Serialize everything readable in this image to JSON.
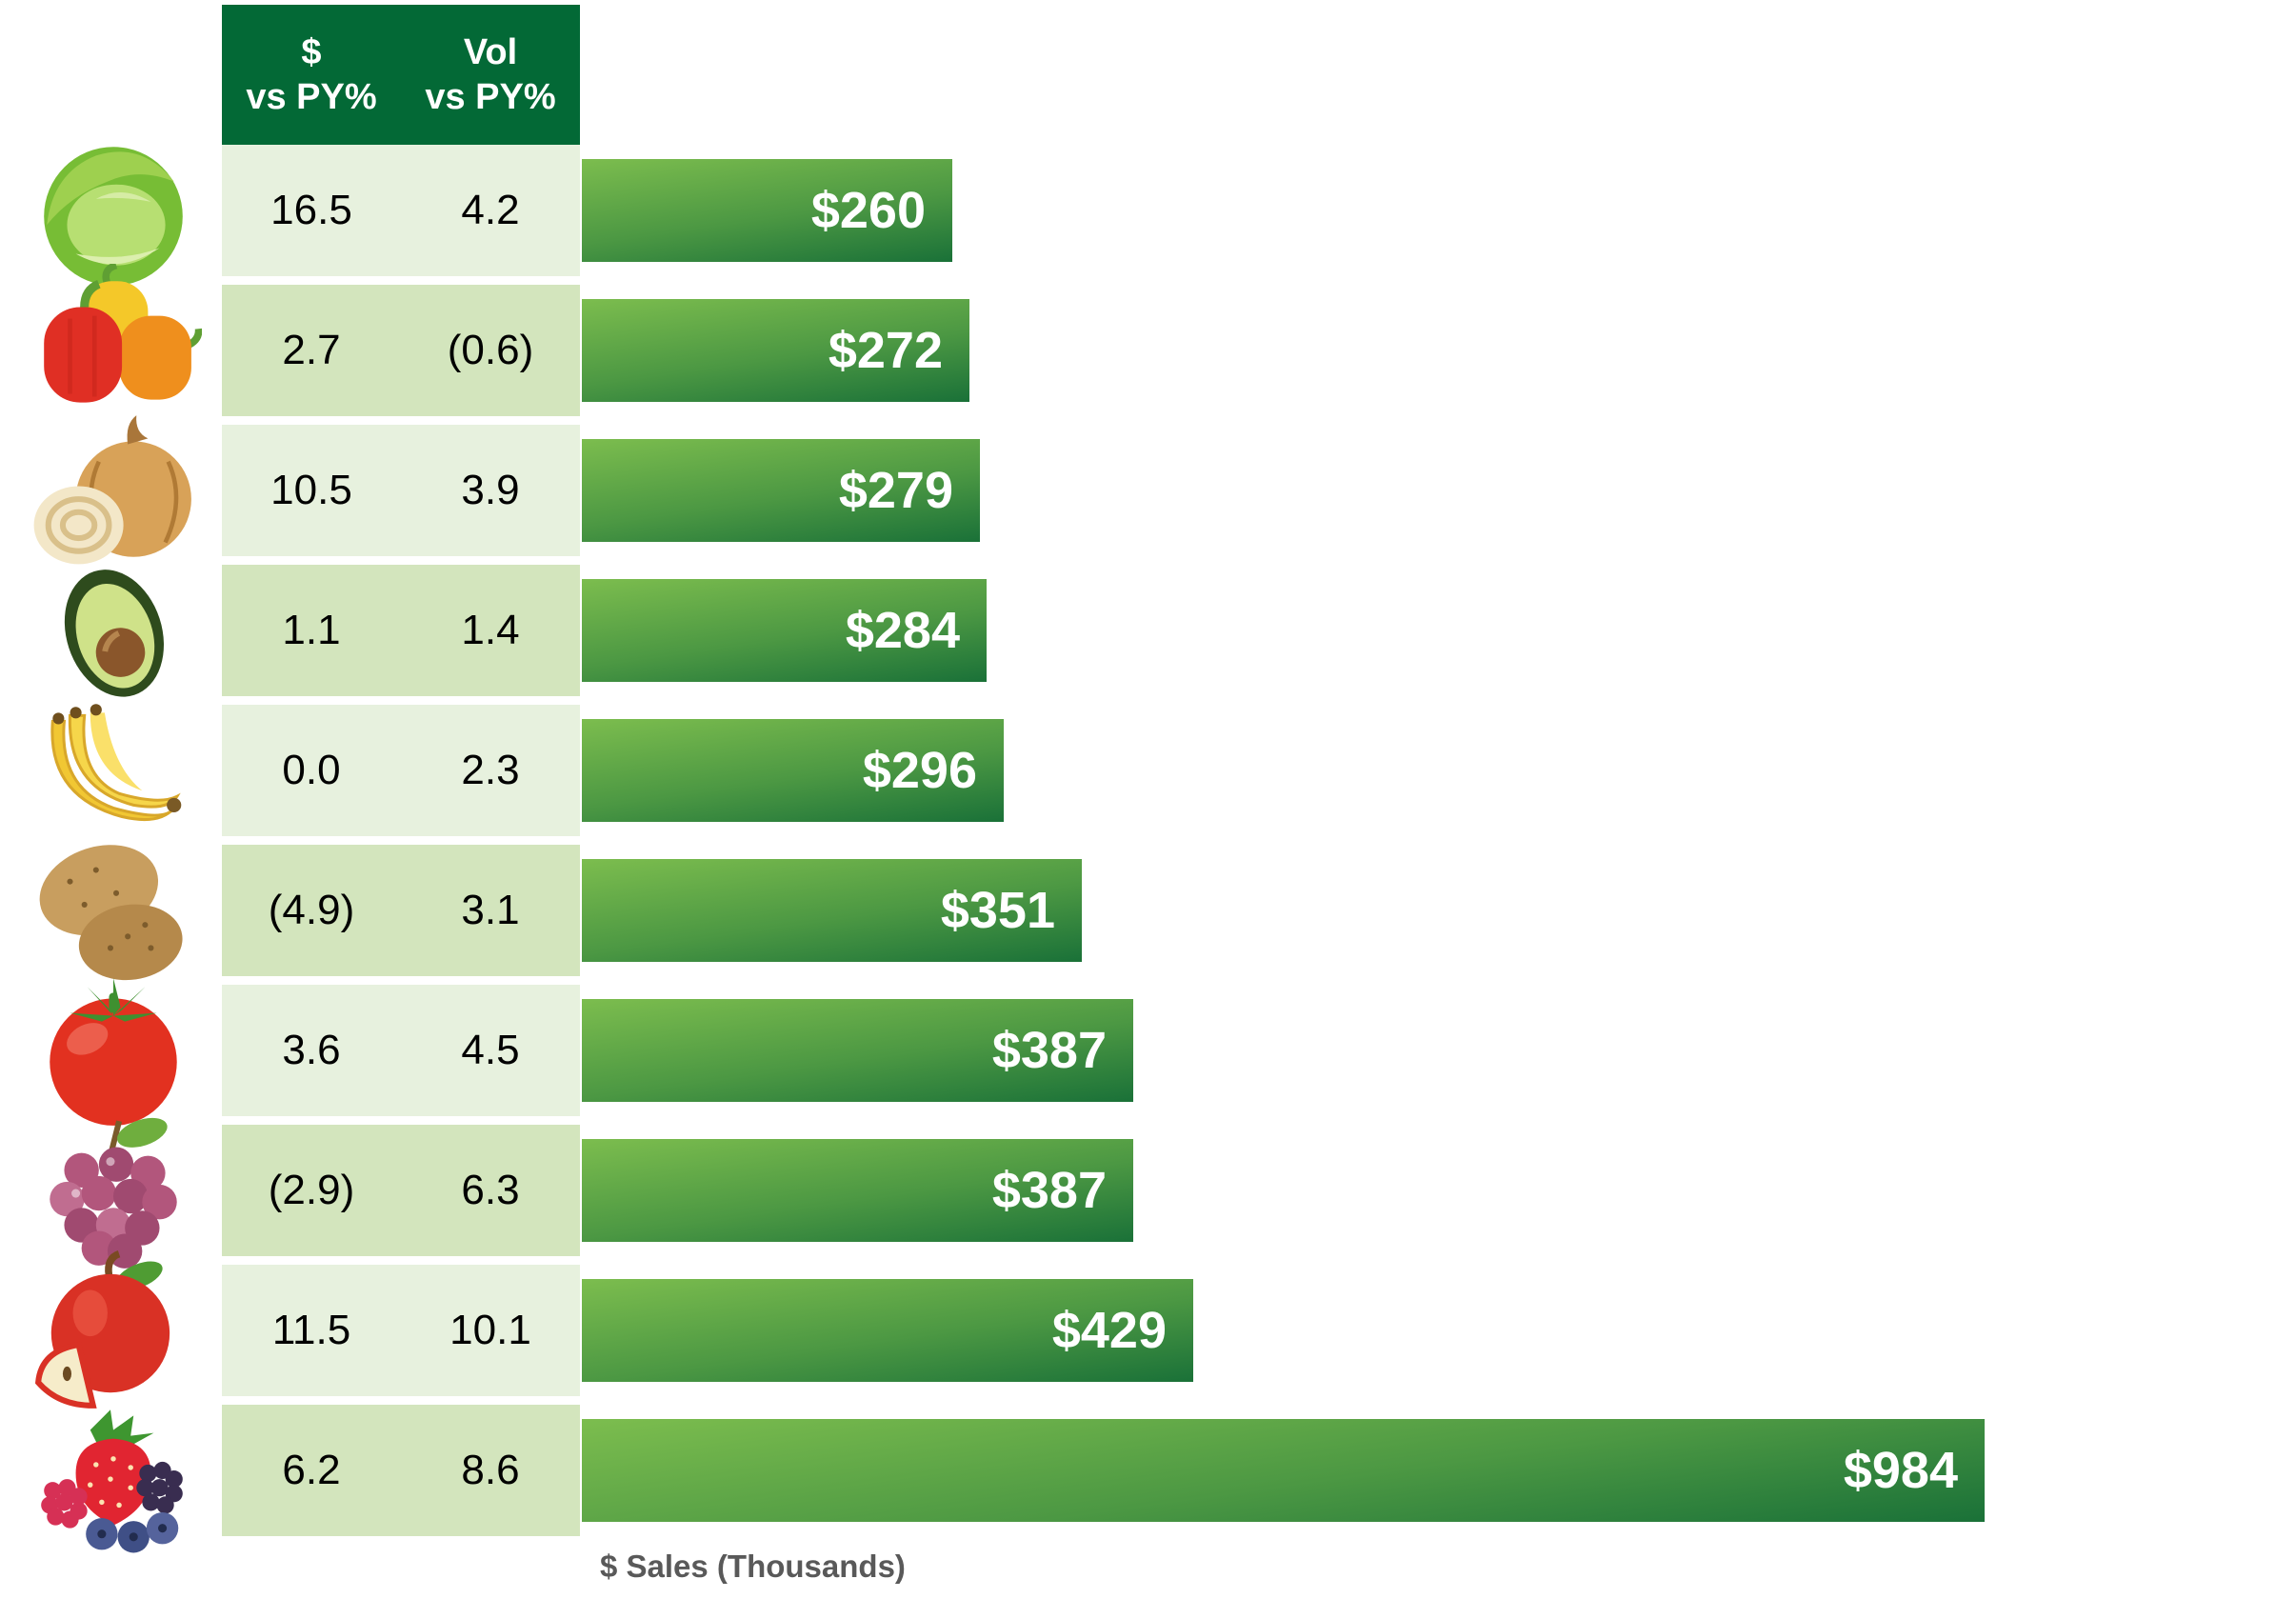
{
  "table": {
    "header": {
      "col1_line1": "$",
      "col1_line2": "vs PY%",
      "col2_line1": "Vol",
      "col2_line2": "vs PY%"
    },
    "rows": [
      {
        "item": "lettuce",
        "dollar_vs_py": "16.5",
        "vol_vs_py": "4.2",
        "sales_label": "$260"
      },
      {
        "item": "bell-peppers",
        "dollar_vs_py": "2.7",
        "vol_vs_py": "(0.6)",
        "sales_label": "$272"
      },
      {
        "item": "onion",
        "dollar_vs_py": "10.5",
        "vol_vs_py": "3.9",
        "sales_label": "$279"
      },
      {
        "item": "avocado",
        "dollar_vs_py": "1.1",
        "vol_vs_py": "1.4",
        "sales_label": "$284"
      },
      {
        "item": "bananas",
        "dollar_vs_py": "0.0",
        "vol_vs_py": "2.3",
        "sales_label": "$296"
      },
      {
        "item": "potatoes",
        "dollar_vs_py": "(4.9)",
        "vol_vs_py": "3.1",
        "sales_label": "$351"
      },
      {
        "item": "tomato",
        "dollar_vs_py": "3.6",
        "vol_vs_py": "4.5",
        "sales_label": "$387"
      },
      {
        "item": "grapes",
        "dollar_vs_py": "(2.9)",
        "vol_vs_py": "6.3",
        "sales_label": "$387"
      },
      {
        "item": "apple",
        "dollar_vs_py": "11.5",
        "vol_vs_py": "10.1",
        "sales_label": "$429"
      },
      {
        "item": "berries",
        "dollar_vs_py": "6.2",
        "vol_vs_py": "8.6",
        "sales_label": "$984"
      }
    ]
  },
  "axis": {
    "xlabel": "$ Sales (Thousands)"
  },
  "colors": {
    "header_bg": "#036936",
    "row_light": "#e7f1de",
    "row_dark": "#d3e5bd",
    "bar_gradient_start": "#7cbd4e",
    "bar_gradient_end": "#1a7138",
    "bar_label": "#ffffff",
    "axis_label": "#595959",
    "table_text": "#000000"
  },
  "chart_data": {
    "type": "bar",
    "orientation": "horizontal",
    "categories": [
      "lettuce",
      "bell-peppers",
      "onion",
      "avocado",
      "bananas",
      "potatoes",
      "tomato",
      "grapes",
      "apple",
      "berries"
    ],
    "series": [
      {
        "name": "$ Sales (Thousands)",
        "values": [
          260,
          272,
          279,
          284,
          296,
          351,
          387,
          387,
          429,
          984
        ]
      },
      {
        "name": "$ vs PY%",
        "values": [
          16.5,
          2.7,
          10.5,
          1.1,
          0.0,
          -4.9,
          3.6,
          -2.9,
          11.5,
          6.2
        ]
      },
      {
        "name": "Vol vs PY%",
        "values": [
          4.2,
          -0.6,
          3.9,
          1.4,
          2.3,
          3.1,
          4.5,
          6.3,
          10.1,
          8.6
        ]
      }
    ],
    "value_labels": [
      "$260",
      "$272",
      "$279",
      "$284",
      "$296",
      "$351",
      "$387",
      "$387",
      "$429",
      "$984"
    ],
    "negative_format": "parentheses",
    "xlabel": "$ Sales (Thousands)",
    "grid": false,
    "legend": false,
    "bars_sorted_ascending": true
  }
}
